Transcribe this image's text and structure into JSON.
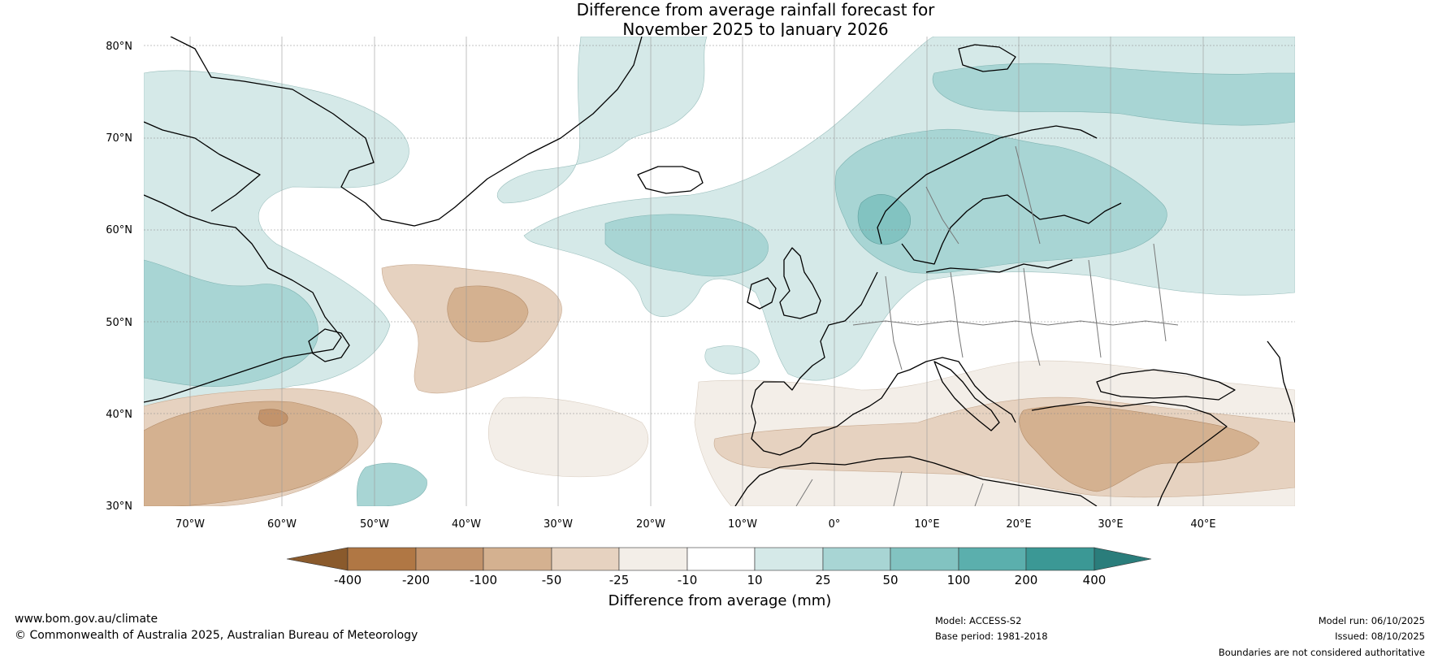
{
  "title": {
    "line1": "Difference from average rainfall forecast for",
    "line2": "November 2025 to January 2026"
  },
  "map": {
    "lat_labels": [
      "80°N",
      "70°N",
      "60°N",
      "50°N",
      "40°N",
      "30°N"
    ],
    "lon_labels": [
      "70°W",
      "60°W",
      "50°W",
      "40°W",
      "30°W",
      "20°W",
      "10°W",
      "0°",
      "10°E",
      "20°E",
      "30°E",
      "40°E"
    ],
    "extent": {
      "lon_min": -75,
      "lon_max": 50,
      "lat_min": 30,
      "lat_max": 81
    }
  },
  "colorbar": {
    "labels": [
      "-400",
      "-200",
      "-100",
      "-50",
      "-25",
      "-10",
      "10",
      "25",
      "50",
      "100",
      "200",
      "400"
    ],
    "colors": [
      "#8a5a2c",
      "#b07744",
      "#c2936b",
      "#d4b190",
      "#e6d2c0",
      "#f3eee8",
      "#ffffff",
      "#d5e9e8",
      "#a8d5d4",
      "#82c3c1",
      "#5bafad",
      "#3b9895",
      "#2a7d7b"
    ],
    "label": "Difference from average (mm)"
  },
  "footer": {
    "website": "www.bom.gov.au/climate",
    "copyright": "© Commonwealth of Australia 2025, Australian Bureau of Meteorology",
    "model": "Model: ACCESS-S2",
    "base_period": "Base period: 1981-2018",
    "model_run": "Model run: 06/10/2025",
    "issued": "Issued: 08/10/2025",
    "disclaimer": "Boundaries are not considered authoritative"
  }
}
